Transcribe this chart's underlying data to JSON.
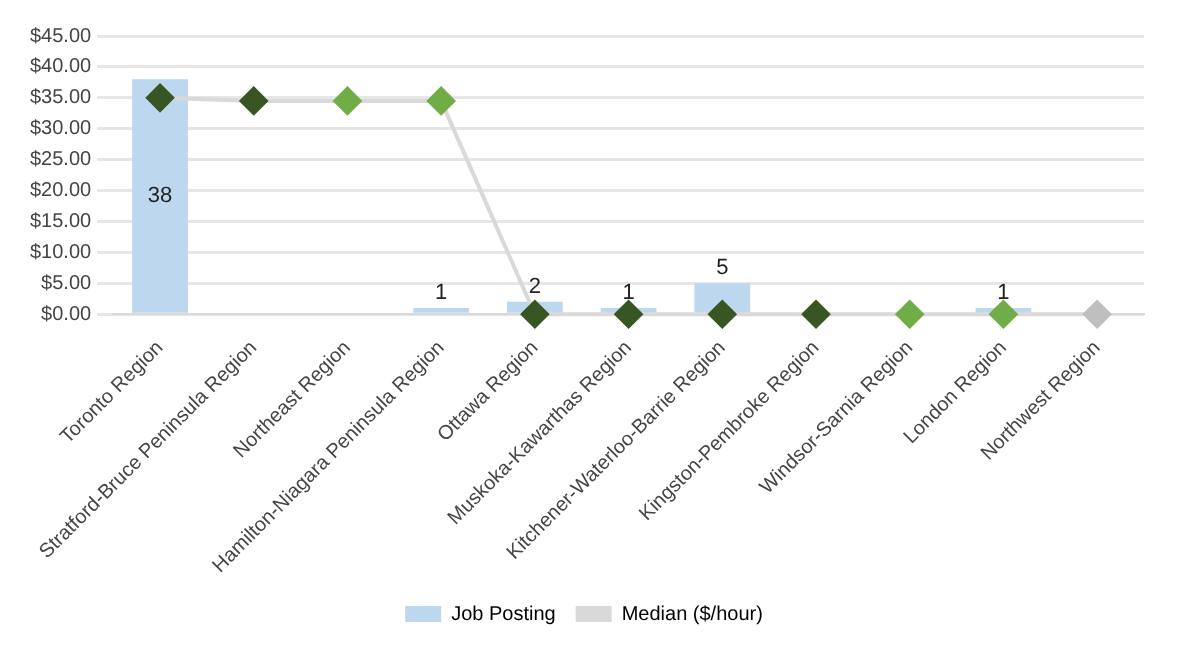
{
  "chart_data": {
    "type": "bar",
    "categories": [
      "Toronto Region",
      "Stratford-Bruce Peninsula Region",
      "Northeast Region",
      "Hamilton-Niagara Peninsula Region",
      "Ottawa Region",
      "Muskoka-Kawarthas Region",
      "Kitchener-Waterloo-Barrie Region",
      "Kingston-Pembroke Region",
      "Windsor-Sarnia Region",
      "London Region",
      "Northwest Region"
    ],
    "series": [
      {
        "name": "Job Posting",
        "color": "#bdd7ee",
        "values": [
          38,
          0,
          0,
          1,
          2,
          1,
          5,
          0,
          0,
          1,
          0
        ],
        "value_labels": [
          "38",
          null,
          null,
          "1",
          "2",
          "1",
          "5",
          null,
          null,
          "1",
          null
        ]
      },
      {
        "name": "Median ($/hour)",
        "type": "line",
        "color": "#d9d9d9",
        "colors": [
          "#375623",
          "#375623",
          "#70ad47",
          "#70ad47",
          "#375623",
          "#375623",
          "#375623",
          "#375623",
          "#70ad47",
          "#70ad47",
          "#bfbfbf"
        ],
        "marker": "diamond",
        "values": [
          35,
          34.5,
          34.5,
          34.5,
          0,
          0,
          0,
          0,
          0,
          0,
          0
        ]
      }
    ],
    "ylim": [
      0,
      45
    ],
    "yticks": [
      {
        "value": 0,
        "label": "$0.00"
      },
      {
        "value": 5,
        "label": "$5.00"
      },
      {
        "value": 10,
        "label": "$10.00"
      },
      {
        "value": 15,
        "label": "$15.00"
      },
      {
        "value": 20,
        "label": "$20.00"
      },
      {
        "value": 25,
        "label": "$25.00"
      },
      {
        "value": 30,
        "label": "$30.00"
      },
      {
        "value": 35,
        "label": "$35.00"
      },
      {
        "value": 40,
        "label": "$40.00"
      },
      {
        "value": 45,
        "label": "$45.00"
      }
    ],
    "grid": "y",
    "legend": "bottom"
  }
}
